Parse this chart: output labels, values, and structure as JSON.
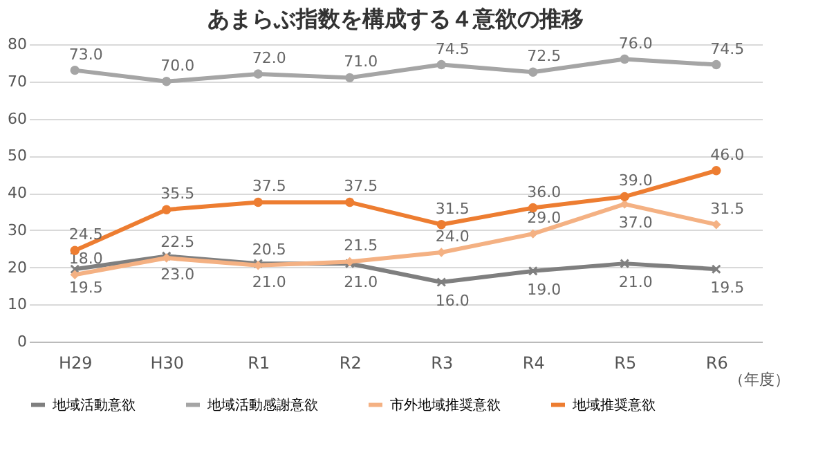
{
  "chart_data": {
    "type": "line",
    "title": "あまらぶ指数を構成する４意欲の推移",
    "categories": [
      "H29",
      "H30",
      "R1",
      "R2",
      "R3",
      "R4",
      "R5",
      "R6"
    ],
    "series": [
      {
        "name": "地域活動意欲",
        "color": "#7f7f7f",
        "marker": "cross",
        "values": [
          19.5,
          23.0,
          21.0,
          21.0,
          16.0,
          19.0,
          21.0,
          19.5
        ],
        "value_labels": [
          "19.5",
          "23.0",
          "21.0",
          "21.0",
          "16.0",
          "19.0",
          "21.0",
          "19.5"
        ]
      },
      {
        "name": "地域活動感謝意欲",
        "color": "#a5a5a5",
        "marker": "circle",
        "values": [
          73.0,
          70.0,
          72.0,
          71.0,
          74.5,
          72.5,
          76.0,
          74.5
        ],
        "value_labels": [
          "73.0",
          "70.0",
          "72.0",
          "71.0",
          "74.5",
          "72.5",
          "76.0",
          "74.5"
        ]
      },
      {
        "name": "市外地域推奨意欲",
        "color": "#f4b183",
        "marker": "diamond",
        "values": [
          18.0,
          22.5,
          20.5,
          21.5,
          24.0,
          29.0,
          37.0,
          31.5
        ],
        "value_labels": [
          "18.0",
          "22.5",
          "20.5",
          "21.5",
          "24.0",
          "29.0",
          "37.0",
          "31.5"
        ]
      },
      {
        "name": "地域推奨意欲",
        "color": "#ed7d31",
        "marker": "circle",
        "values": [
          24.5,
          35.5,
          37.5,
          37.5,
          31.5,
          36.0,
          39.0,
          46.0
        ],
        "value_labels": [
          "24.5",
          "35.5",
          "37.5",
          "37.5",
          "31.5",
          "36.0",
          "39.0",
          "46.0"
        ]
      }
    ],
    "ylim": [
      0,
      80
    ],
    "yticks": [
      0,
      10,
      20,
      30,
      40,
      50,
      60,
      70,
      80
    ],
    "grid": "y",
    "legend": "bottom",
    "line_style": "solid",
    "annotations": [
      "（年度）"
    ]
  }
}
